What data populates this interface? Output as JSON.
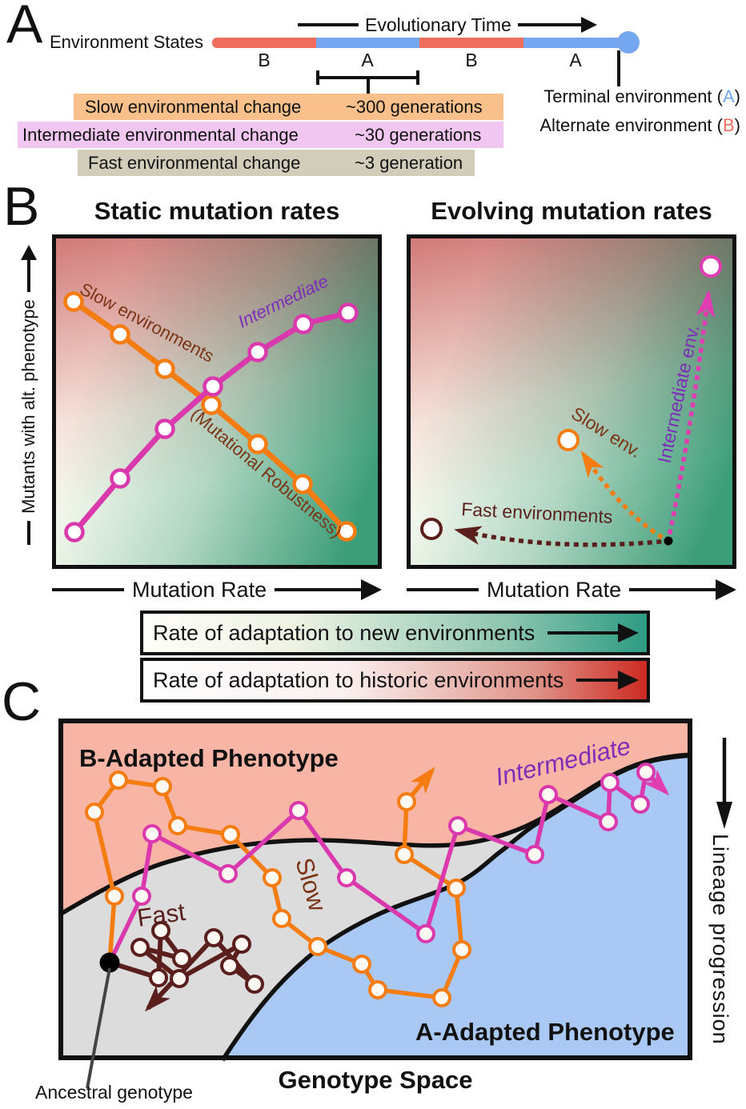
{
  "panelA": {
    "label": "A",
    "evolutionary_time_label": "Evolutionary Time",
    "environment_states_label": "Environment States",
    "timeline_segments": [
      "B",
      "A",
      "B",
      "A"
    ],
    "change_rows": [
      {
        "label": "Slow environmental change",
        "value": "~300 generations"
      },
      {
        "label": "Intermediate environmental change",
        "value": "~30 generations"
      },
      {
        "label": "Fast environmental change",
        "value": "~3 generation"
      }
    ],
    "terminal_env": {
      "prefix": "Terminal environment (",
      "letter": "A",
      "suffix": ")"
    },
    "alternate_env": {
      "prefix": "Alternate environment (",
      "letter": "B",
      "suffix": ")"
    },
    "colors": {
      "env_a": "#74a7ef",
      "env_b": "#ee6d5c",
      "row_slow": "#f9c08c",
      "row_intermediate": "#f1c7f1",
      "row_fast": "#d2ccba"
    }
  },
  "panelB": {
    "label": "B",
    "left_title": "Static mutation rates",
    "right_title": "Evolving mutation rates",
    "x_axis_label": "Mutation Rate",
    "y_axis_label": "Mutants with alt. phenotype",
    "left_plot": {
      "series": [
        {
          "name": "Slow environments",
          "color": "#f47c10",
          "label_color": "#7c3514",
          "points": [
            [
              22,
              79
            ],
            [
              80,
              120
            ],
            [
              136,
              163
            ],
            [
              194,
              208
            ],
            [
              252,
              257
            ],
            [
              308,
              307
            ],
            [
              363,
              366
            ]
          ]
        },
        {
          "name": "Intermediate",
          "color": "#d939ac",
          "label_color": "#7d2db8",
          "points": [
            [
              23,
              367
            ],
            [
              80,
              300
            ],
            [
              136,
              238
            ],
            [
              196,
              185
            ],
            [
              252,
              142
            ],
            [
              309,
              107
            ],
            [
              365,
              93
            ]
          ]
        }
      ],
      "annotation": "(Mutational Robustness)"
    },
    "right_plot": {
      "start_dot": [
        322,
        378
      ],
      "trajectories": [
        {
          "name": "Fast environments",
          "color": "#5a1e1c",
          "marker": "maroon",
          "start": [
            322,
            378
          ],
          "ctrl": [
            180,
            392
          ],
          "end": [
            60,
            365
          ],
          "endpoint": [
            26,
            363
          ]
        },
        {
          "name": "Slow env.",
          "color": "#f47c10",
          "marker": "orange",
          "start": [
            322,
            378
          ],
          "ctrl": [
            270,
            350
          ],
          "end": [
            216,
            270
          ],
          "endpoint": [
            197,
            252
          ]
        },
        {
          "name": "Intermediate env.",
          "color": "#e03db2",
          "marker": "magenta",
          "start": [
            322,
            378
          ],
          "ctrl": [
            352,
            230
          ],
          "end": [
            372,
            70
          ],
          "endpoint": [
            375,
            35
          ]
        }
      ]
    }
  },
  "legend_bars": [
    {
      "text": "Rate of adaptation to new environments",
      "end_color": "#2d9b82"
    },
    {
      "text": "Rate of adaptation to historic environments",
      "end_color": "#cd2a22"
    }
  ],
  "panelC": {
    "label": "C",
    "b_region_label": "B-Adapted Phenotype",
    "a_region_label": "A-Adapted Phenotype",
    "fast_label": "Fast",
    "slow_label": "Slow",
    "intermediate_label": "Intermediate",
    "genotype_space_label": "Genotype Space",
    "ancestral_label": "Ancestral genotype",
    "lineage_label": "Lineage progression",
    "colors": {
      "b_region": "#f8b4a4",
      "a_region": "#a9c8f3",
      "neutral": "#dcdcdc"
    },
    "trajectories": [
      {
        "name": "fast",
        "color": "#5a1e1c",
        "marker": "maroon",
        "points": [
          [
            64,
            305
          ],
          [
            125,
            324
          ],
          [
            128,
            265
          ],
          [
            154,
            300
          ],
          [
            102,
            286
          ],
          [
            151,
            325
          ],
          [
            229,
            282
          ],
          [
            214,
            309
          ],
          [
            245,
            332
          ],
          [
            194,
            274
          ],
          [
            112,
            362
          ]
        ]
      },
      {
        "name": "slow",
        "color": "#f47c10",
        "marker": "orange",
        "points": [
          [
            64,
            305
          ],
          [
            70,
            222
          ],
          [
            45,
            117
          ],
          [
            75,
            77
          ],
          [
            130,
            85
          ],
          [
            149,
            134
          ],
          [
            215,
            145
          ],
          [
            267,
            199
          ],
          [
            279,
            250
          ],
          [
            324,
            285
          ],
          [
            379,
            307
          ],
          [
            399,
            339
          ],
          [
            479,
            349
          ],
          [
            504,
            289
          ],
          [
            497,
            212
          ],
          [
            432,
            170
          ],
          [
            435,
            104
          ],
          [
            467,
            65
          ]
        ]
      },
      {
        "name": "intermediate",
        "color": "#d939ac",
        "marker": "magenta",
        "points": [
          [
            64,
            305
          ],
          [
            104,
            222
          ],
          [
            117,
            144
          ],
          [
            212,
            194
          ],
          [
            300,
            115
          ],
          [
            360,
            199
          ],
          [
            459,
            269
          ],
          [
            499,
            134
          ],
          [
            595,
            170
          ],
          [
            612,
            95
          ],
          [
            687,
            129
          ],
          [
            689,
            80
          ],
          [
            727,
            107
          ],
          [
            734,
            67
          ],
          [
            759,
            92
          ]
        ]
      }
    ]
  },
  "colors": {
    "brown_label": "#7c3514",
    "purple_label": "#7d2db8",
    "maroon_label": "#5a1e1c",
    "orange_line": "#f47c10",
    "magenta_line": "#d939ac"
  }
}
